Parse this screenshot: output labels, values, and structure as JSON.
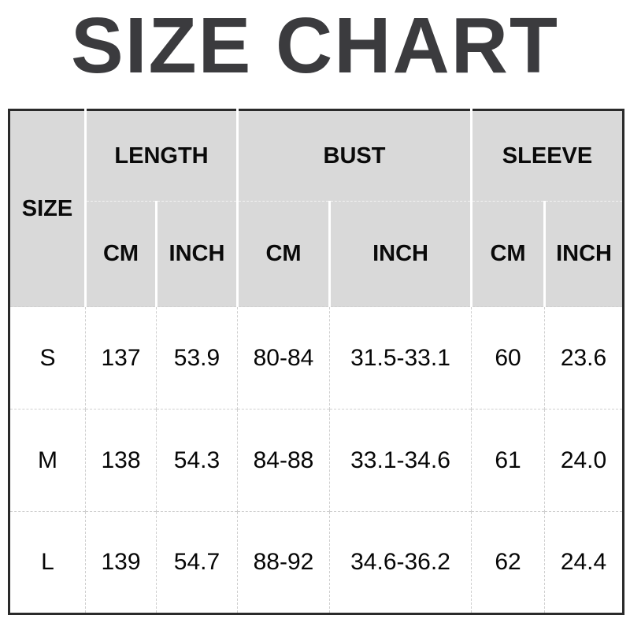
{
  "title": "SIZE CHART",
  "colors": {
    "title_text": "#3b3b3e",
    "header_background": "#d9d9d9",
    "header_text": "#0a0a0a",
    "body_text": "#060606",
    "outer_border": "#2a2a2a",
    "header_separator": "#ffffff",
    "body_gridline": "#cfcfcf"
  },
  "chart_data": {
    "type": "table",
    "title": "SIZE CHART",
    "header": {
      "row_label": "SIZE",
      "groups": [
        "LENGTH",
        "BUST",
        "SLEEVE"
      ],
      "units": [
        "CM",
        "INCH",
        "CM",
        "INCH",
        "CM",
        "INCH"
      ]
    },
    "columns": [
      "SIZE",
      "LENGTH CM",
      "LENGTH INCH",
      "BUST CM",
      "BUST INCH",
      "SLEEVE CM",
      "SLEEVE INCH"
    ],
    "rows": [
      [
        "S",
        "137",
        "53.9",
        "80-84",
        "31.5-33.1",
        "60",
        "23.6"
      ],
      [
        "M",
        "138",
        "54.3",
        "84-88",
        "33.1-34.6",
        "61",
        "24.0"
      ],
      [
        "L",
        "139",
        "54.7",
        "88-92",
        "34.6-36.2",
        "62",
        "24.4"
      ]
    ]
  }
}
